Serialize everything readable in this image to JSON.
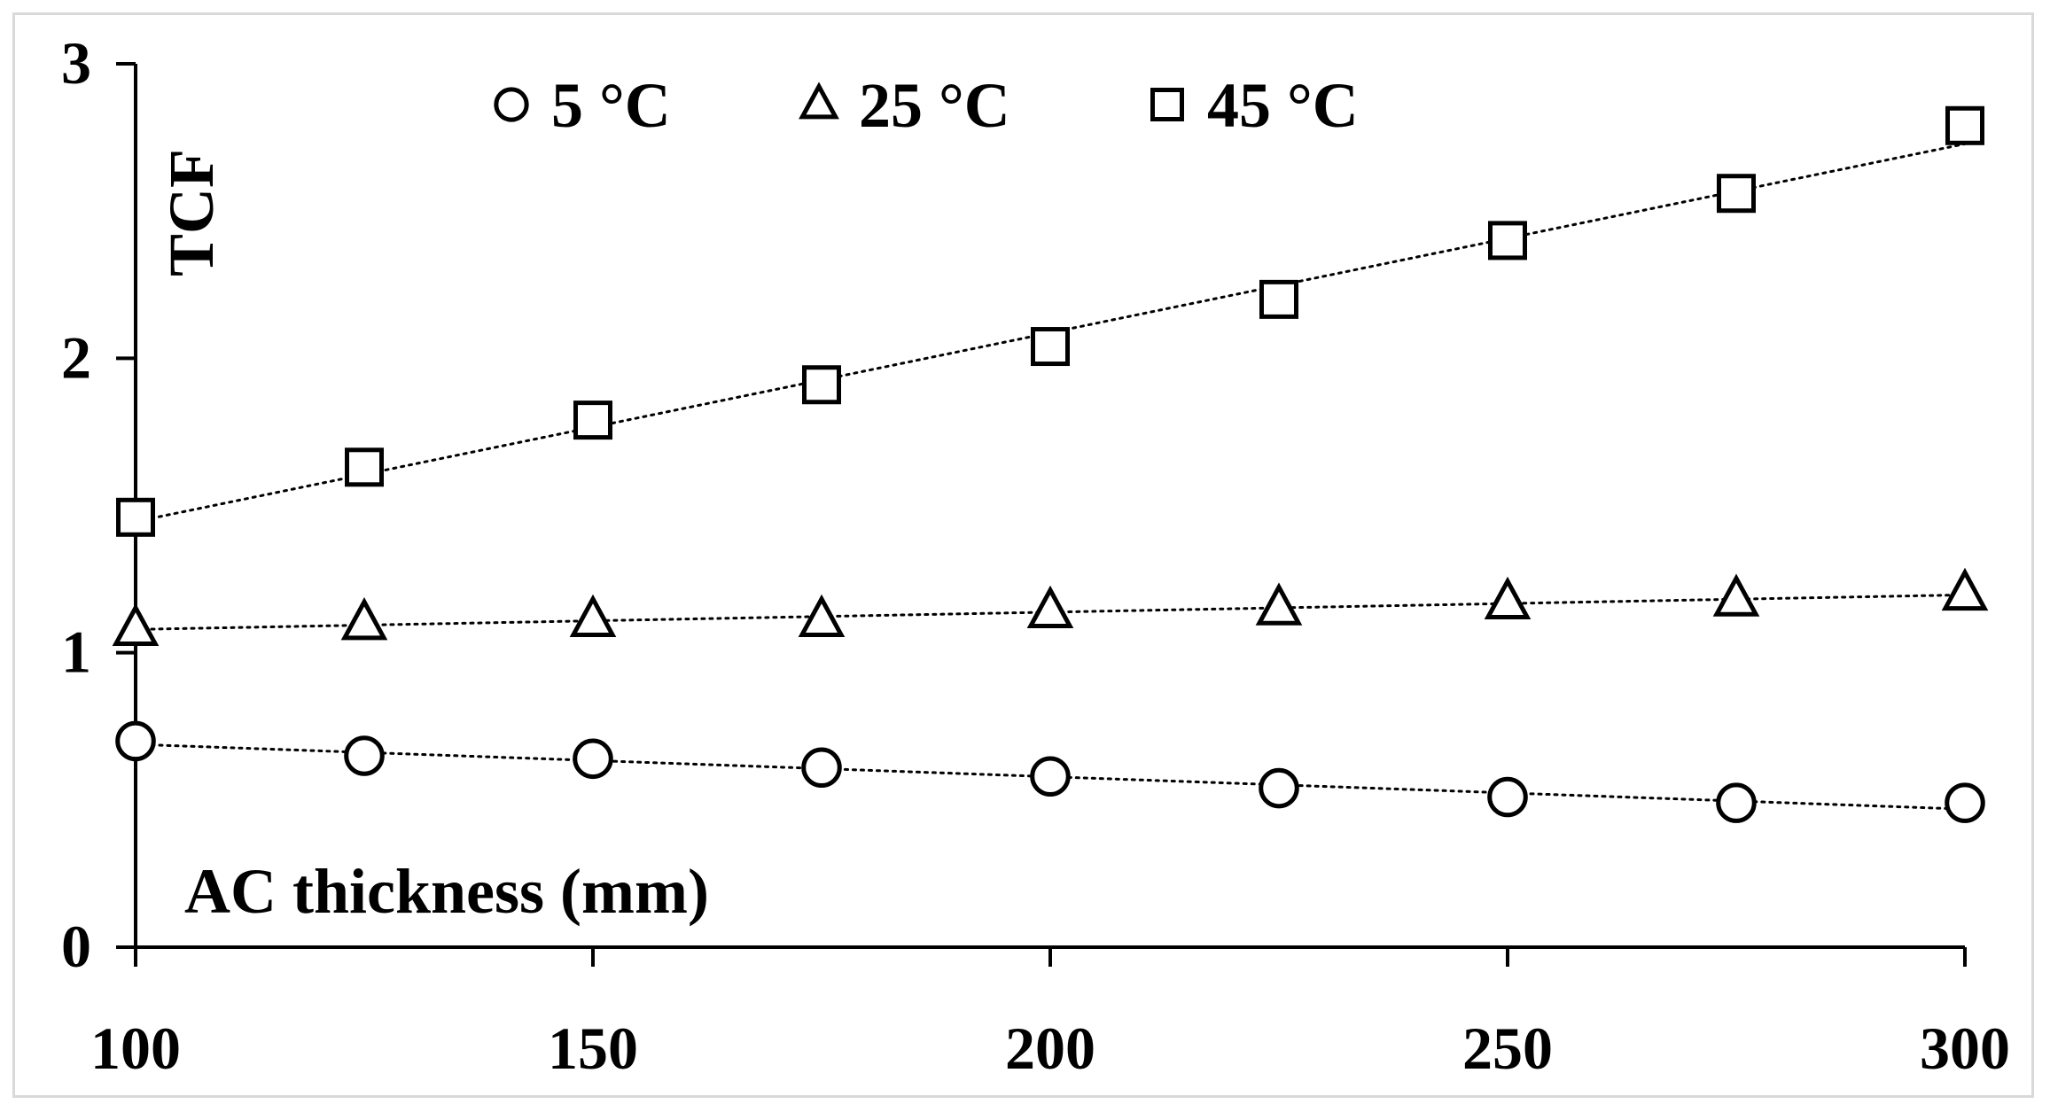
{
  "chart_data": {
    "type": "scatter",
    "title": "",
    "xlabel": "AC thickness (mm)",
    "ylabel": "TCF",
    "xlim": [
      100,
      300
    ],
    "ylim": [
      0,
      3
    ],
    "x_ticks": [
      100,
      150,
      200,
      250,
      300
    ],
    "y_ticks": [
      0,
      1,
      2,
      3
    ],
    "x_tick_labels": [
      "100",
      "150",
      "200",
      "250",
      "300"
    ],
    "y_tick_labels": [
      "0",
      "1",
      "2",
      "3"
    ],
    "x": [
      100,
      125,
      150,
      175,
      200,
      225,
      250,
      275,
      300
    ],
    "grid": false,
    "legend_position": "top-center",
    "trendlines": "linear, dotted",
    "series": [
      {
        "name": "5 °C",
        "marker": "circle",
        "values": [
          0.7,
          0.65,
          0.64,
          0.61,
          0.58,
          0.54,
          0.51,
          0.49,
          0.49
        ]
      },
      {
        "name": "25 °C",
        "marker": "triangle",
        "values": [
          1.08,
          1.1,
          1.11,
          1.11,
          1.14,
          1.15,
          1.17,
          1.18,
          1.2
        ]
      },
      {
        "name": "45 °C",
        "marker": "square",
        "values": [
          1.46,
          1.63,
          1.79,
          1.91,
          2.04,
          2.2,
          2.4,
          2.56,
          2.79
        ]
      }
    ]
  }
}
